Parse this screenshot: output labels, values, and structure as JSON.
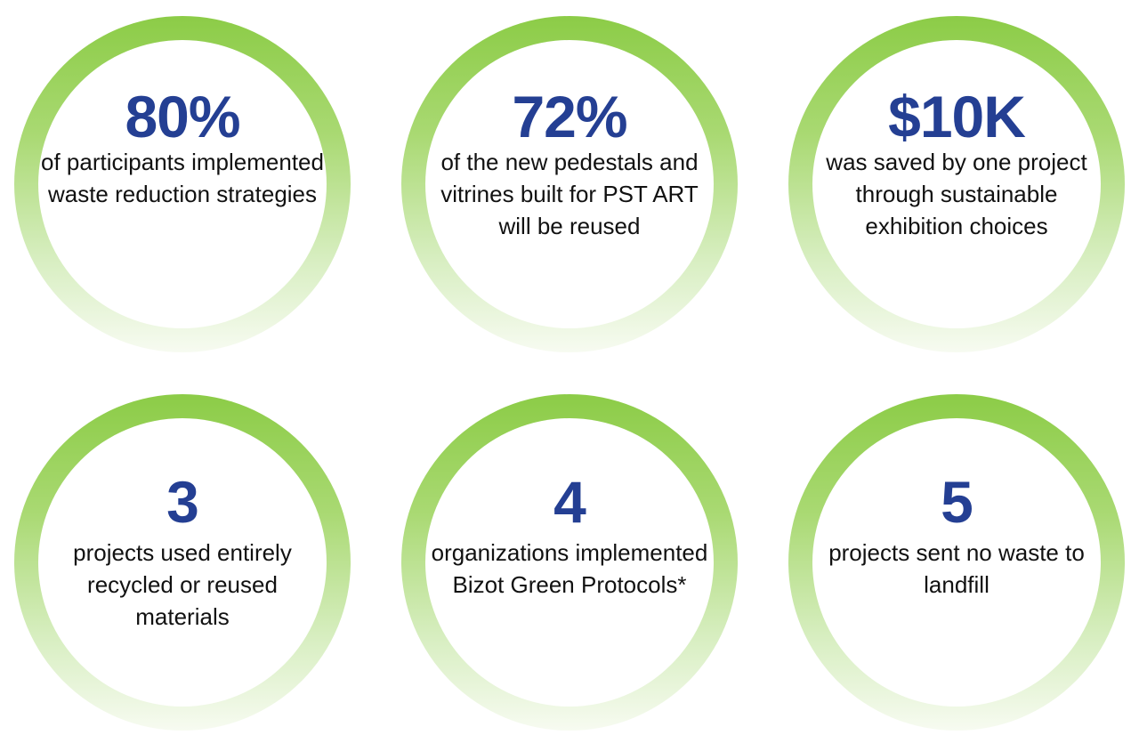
{
  "stats": [
    {
      "value": "80%",
      "label": "of participants implemented waste reduction strategies"
    },
    {
      "value": "72%",
      "label": "of the new pedestals and vitrines built for PST ART will be reused"
    },
    {
      "value": "$10K",
      "label": "was saved by one project through sustainable exhibition choices"
    },
    {
      "value": "3",
      "label": "projects used entirely recycled or reused materials"
    },
    {
      "value": "4",
      "label": "organizations implemented Bizot Green Protocols*"
    },
    {
      "value": "5",
      "label": "projects sent no waste to landfill"
    }
  ],
  "colors": {
    "value_text": "#243f93",
    "ring_top": "#8ccc47",
    "ring_bottom": "#f7fbf1",
    "label_text": "#111111"
  }
}
